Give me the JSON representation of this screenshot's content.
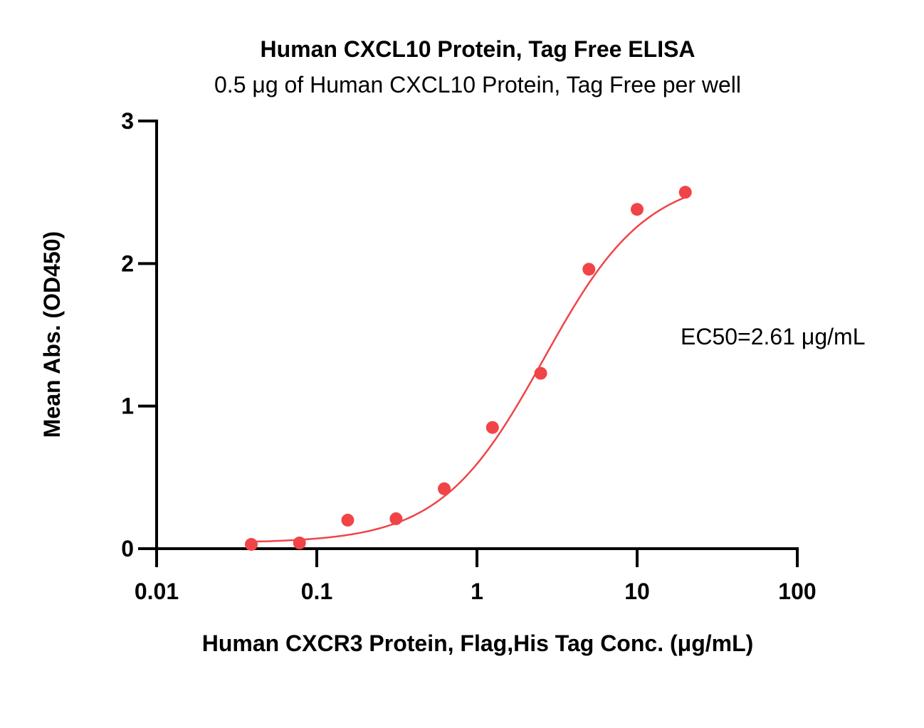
{
  "chart_data": {
    "type": "scatter",
    "title": "Human CXCL10 Protein, Tag Free ELISA",
    "subtitle": "0.5 μg of Human CXCL10 Protein, Tag Free per well",
    "xlabel": "Human CXCR3 Protein, Flag,His Tag Conc. (μg/mL)",
    "ylabel": "Mean Abs. (OD450)",
    "xscale": "log",
    "xlim": [
      0.01,
      100
    ],
    "ylim": [
      0,
      3
    ],
    "xticks": [
      0.01,
      0.1,
      1,
      10,
      100
    ],
    "xtick_labels": [
      "0.01",
      "0.1",
      "1",
      "10",
      "100"
    ],
    "yticks": [
      0,
      1,
      2,
      3
    ],
    "ytick_labels": [
      "0",
      "1",
      "2",
      "3"
    ],
    "grid": false,
    "legend": "none",
    "series": [
      {
        "marker": "circle",
        "color": "#f04447",
        "fit": "4PL sigmoid",
        "x": [
          0.039,
          0.078,
          0.156,
          0.3125,
          0.625,
          1.25,
          2.5,
          5,
          10,
          20
        ],
        "y": [
          0.03,
          0.04,
          0.2,
          0.21,
          0.42,
          0.85,
          1.23,
          1.96,
          2.38,
          2.5
        ]
      }
    ],
    "fit_curve": {
      "bottom": 0.04,
      "top": 2.62,
      "ec50": 2.61,
      "hill": 1.35,
      "x_range": [
        0.039,
        20
      ]
    },
    "annotations": [
      {
        "text": "EC50=2.61 μg/mL"
      }
    ]
  }
}
